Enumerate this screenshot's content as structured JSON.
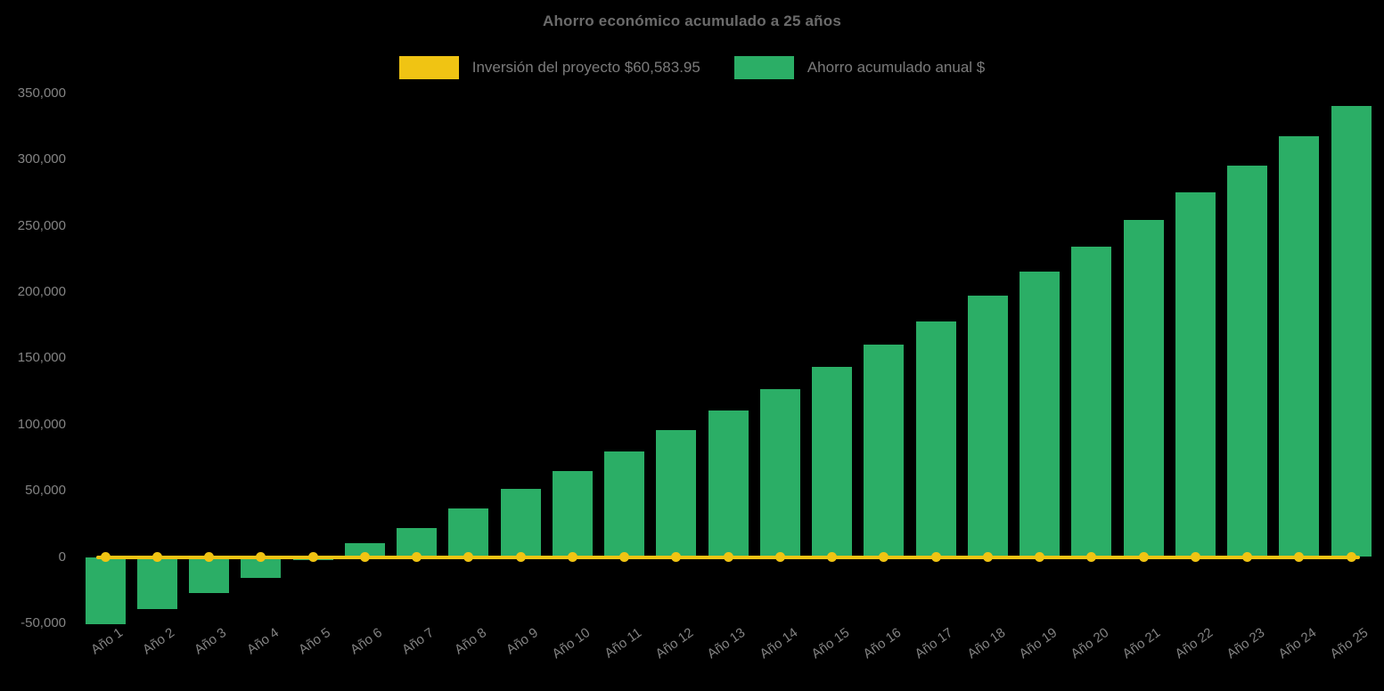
{
  "title": "Ahorro económico acumulado a 25 años",
  "legend": {
    "items": [
      {
        "label": "Inversión del proyecto $60,583.95",
        "color": "#F0C413"
      },
      {
        "label": "Ahorro acumulado anual $",
        "color": "#2BAE66"
      }
    ]
  },
  "chart_data": {
    "type": "bar",
    "title": "Ahorro económico acumulado a 25 años",
    "categories": [
      "Año 1",
      "Año 2",
      "Año 3",
      "Año 4",
      "Año 5",
      "Año 6",
      "Año 7",
      "Año 8",
      "Año 9",
      "Año 10",
      "Año 11",
      "Año 12",
      "Año 13",
      "Año 14",
      "Año 15",
      "Año 16",
      "Año 17",
      "Año 18",
      "Año 19",
      "Año 20",
      "Año 21",
      "Año 22",
      "Año 23",
      "Año 24",
      "Año 25"
    ],
    "series": [
      {
        "name": "Inversión del proyecto $60,583.95",
        "type": "line",
        "color": "#F0C413",
        "values": [
          0,
          0,
          0,
          0,
          0,
          0,
          0,
          0,
          0,
          0,
          0,
          0,
          0,
          0,
          0,
          0,
          0,
          0,
          0,
          0,
          0,
          0,
          0,
          0,
          0
        ]
      },
      {
        "name": "Ahorro acumulado anual $",
        "type": "bar",
        "color": "#2BAE66",
        "values": [
          -51000,
          -39000,
          -27500,
          -16000,
          -2500,
          10500,
          22000,
          36500,
          51500,
          65000,
          80000,
          95500,
          110500,
          127000,
          143500,
          160500,
          178000,
          197000,
          215500,
          234000,
          254500,
          275000,
          295500,
          317500,
          340500
        ]
      }
    ],
    "xlabel": "",
    "ylabel": "",
    "ylim": [
      -50000,
      350000
    ],
    "ytick_step": 50000,
    "ytick_labels": [
      "-50,000",
      "0",
      "50,000",
      "100,000",
      "150,000",
      "200,000",
      "250,000",
      "300,000",
      "350,000"
    ],
    "grid": false,
    "legend_position": "top",
    "background_color": "#000000",
    "axis_text_color": "#848484"
  }
}
